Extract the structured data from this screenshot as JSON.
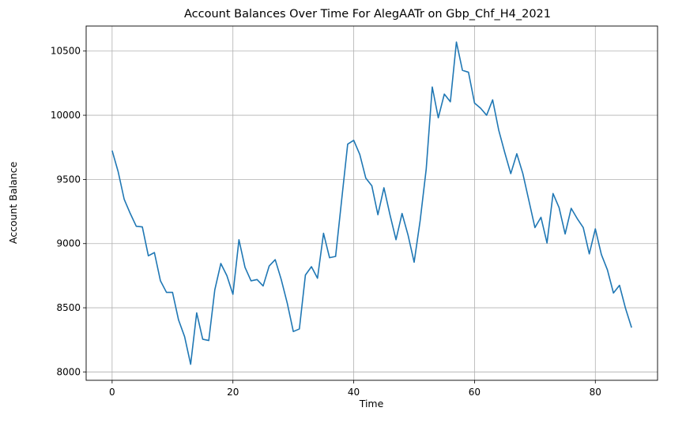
{
  "chart_data": {
    "type": "line",
    "title": "Account Balances Over Time For AlegAATr on Gbp_Chf_H4_2021",
    "xlabel": "Time",
    "ylabel": "Account Balance",
    "xlim": [
      -4.3,
      90.3
    ],
    "ylim": [
      7935,
      10695
    ],
    "xticks": [
      0,
      20,
      40,
      60,
      80
    ],
    "yticks": [
      8000,
      8500,
      9000,
      9500,
      10000,
      10500
    ],
    "grid": true,
    "line_color": "#1f77b4",
    "series": [
      {
        "x": [
          0,
          1,
          2,
          3,
          4,
          5,
          6,
          7,
          8,
          9,
          10,
          11,
          12,
          13,
          14,
          15,
          16,
          17,
          18,
          19,
          20,
          21,
          22,
          23,
          24,
          25,
          26,
          27,
          28,
          29,
          30,
          31,
          32,
          33,
          34,
          35,
          36,
          37,
          38,
          39,
          40,
          41,
          42,
          43,
          44,
          45,
          46,
          47,
          48,
          49,
          50,
          51,
          52,
          53,
          54,
          55,
          56,
          57,
          58,
          59,
          60,
          61,
          62,
          63,
          64,
          65,
          66,
          67,
          68,
          69,
          70,
          71,
          72,
          73,
          74,
          75,
          76,
          77,
          78,
          79,
          80,
          81,
          82,
          83,
          84,
          85,
          86
        ],
        "values": [
          9725,
          9560,
          9345,
          9235,
          9135,
          9130,
          8905,
          8930,
          8710,
          8620,
          8620,
          8405,
          8275,
          8060,
          8460,
          8255,
          8245,
          8640,
          8845,
          8750,
          8605,
          9030,
          8815,
          8710,
          8720,
          8670,
          8825,
          8875,
          8720,
          8535,
          8315,
          8335,
          8755,
          8820,
          8730,
          9080,
          8890,
          8900,
          9340,
          9775,
          9805,
          9695,
          9510,
          9450,
          9225,
          9435,
          9225,
          9030,
          9235,
          9065,
          8855,
          9180,
          9580,
          10220,
          9980,
          10165,
          10105,
          10570,
          10350,
          10335,
          10095,
          10055,
          10000,
          10120,
          9885,
          9710,
          9545,
          9700,
          9545,
          9335,
          9125,
          9205,
          9005,
          9390,
          9280,
          9075,
          9275,
          9195,
          9125,
          8920,
          9115,
          8915,
          8795,
          8615,
          8675,
          8495,
          8345
        ]
      }
    ]
  }
}
